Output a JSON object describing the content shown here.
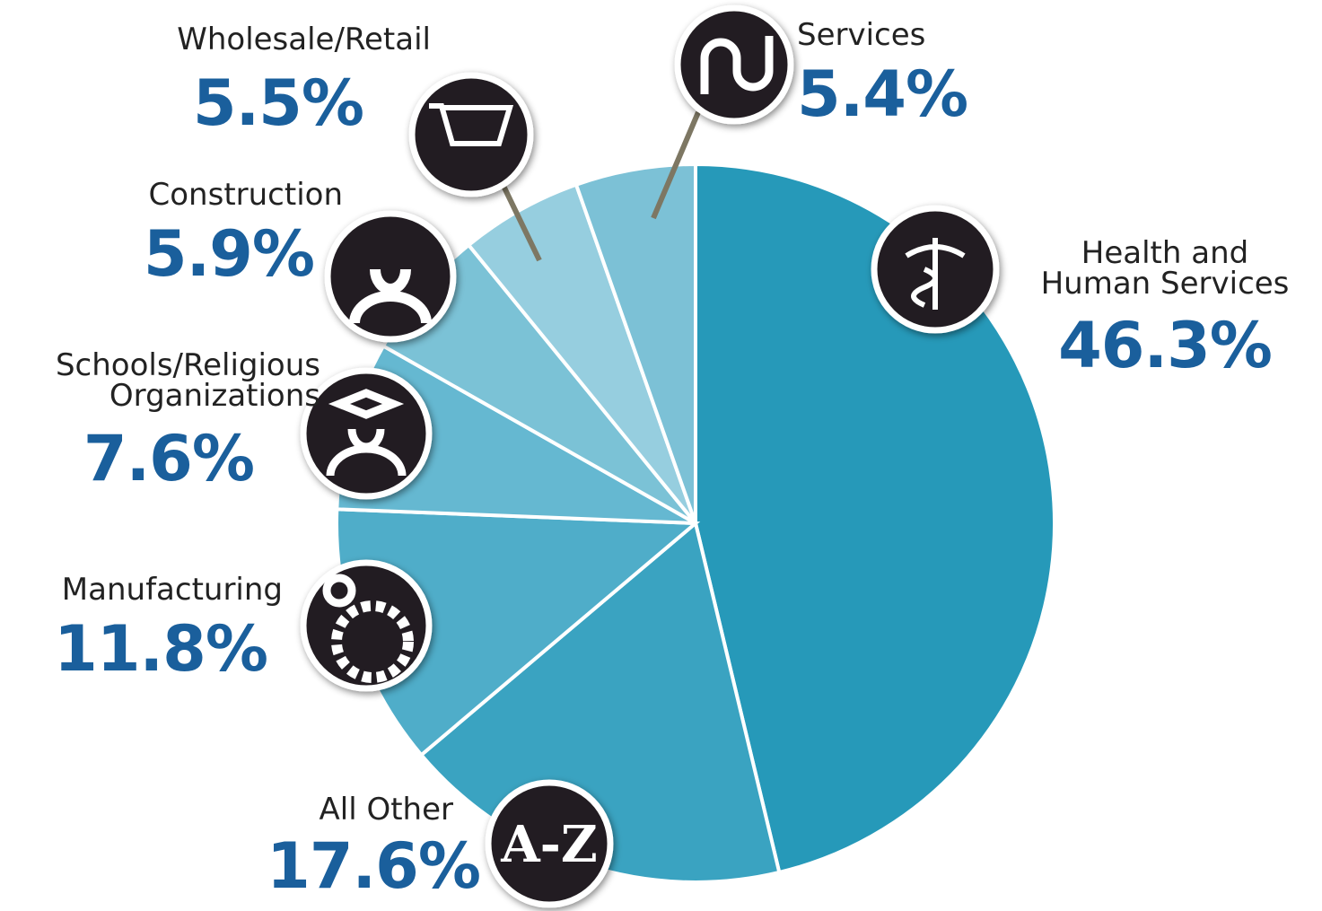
{
  "chart_data": {
    "type": "pie",
    "categories": [
      "Health and\nHuman Services",
      "All Other",
      "Manufacturing",
      "Schools/Religious\nOrganizations",
      "Construction",
      "Wholesale/Retail",
      "Services"
    ],
    "values": [
      46.3,
      17.6,
      11.8,
      7.6,
      5.9,
      5.5,
      5.4
    ],
    "value_labels": [
      "46.3%",
      "17.6%",
      "11.8%",
      "7.6%",
      "5.9%",
      "5.5%",
      "5.4%"
    ],
    "colors": [
      "#2699b9",
      "#3aa3c1",
      "#4fadc9",
      "#65b8d1",
      "#7bc2d6",
      "#96cedf",
      "#7cc1d6"
    ],
    "start_angle": 0,
    "direction": "clockwise",
    "annotations": [
      "A-Z"
    ]
  }
}
